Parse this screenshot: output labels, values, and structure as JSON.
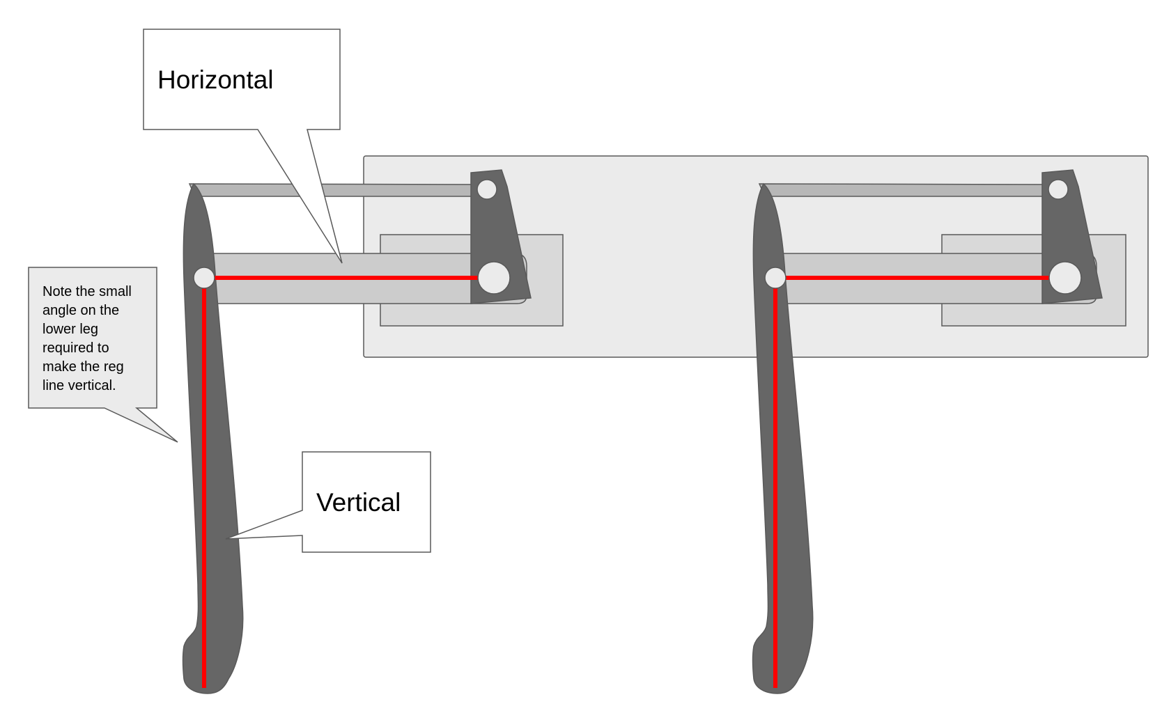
{
  "callouts": {
    "horizontal": {
      "label": "Horizontal"
    },
    "vertical": {
      "label": "Vertical"
    },
    "note": {
      "lines": [
        "Note the small",
        "angle on the",
        "lower leg",
        "required to",
        "make the reg",
        "line vertical."
      ]
    }
  },
  "colors": {
    "leg": "#666666",
    "reference_line": "#ff0000",
    "mount_plate": "#ebebeb",
    "carriage": "#d9d9d9",
    "arm": "#cccccc",
    "upper_link": "#b7b7b7",
    "joint": "#ebebeb",
    "outline": "#595959"
  },
  "icons": {
    "joint": "pivot-circle",
    "leg": "curved-leg-shape",
    "bracket": "pivot-bracket"
  }
}
